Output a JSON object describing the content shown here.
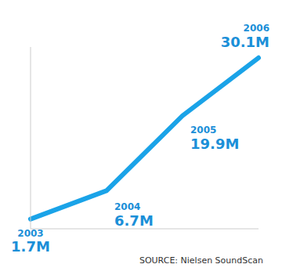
{
  "chart_data": {
    "type": "line",
    "categories": [
      "2003",
      "2004",
      "2005",
      "2006"
    ],
    "values": [
      1.7,
      6.7,
      19.9,
      30.1
    ],
    "value_labels": [
      "1.7M",
      "6.7M",
      "19.9M",
      "30.1M"
    ],
    "ylim": [
      0,
      32
    ],
    "color": "#1aa3e8",
    "data_labels": true,
    "tick_labels": false,
    "grid": false,
    "annotations": [
      "SOURCE: Nielsen SoundScan"
    ]
  }
}
